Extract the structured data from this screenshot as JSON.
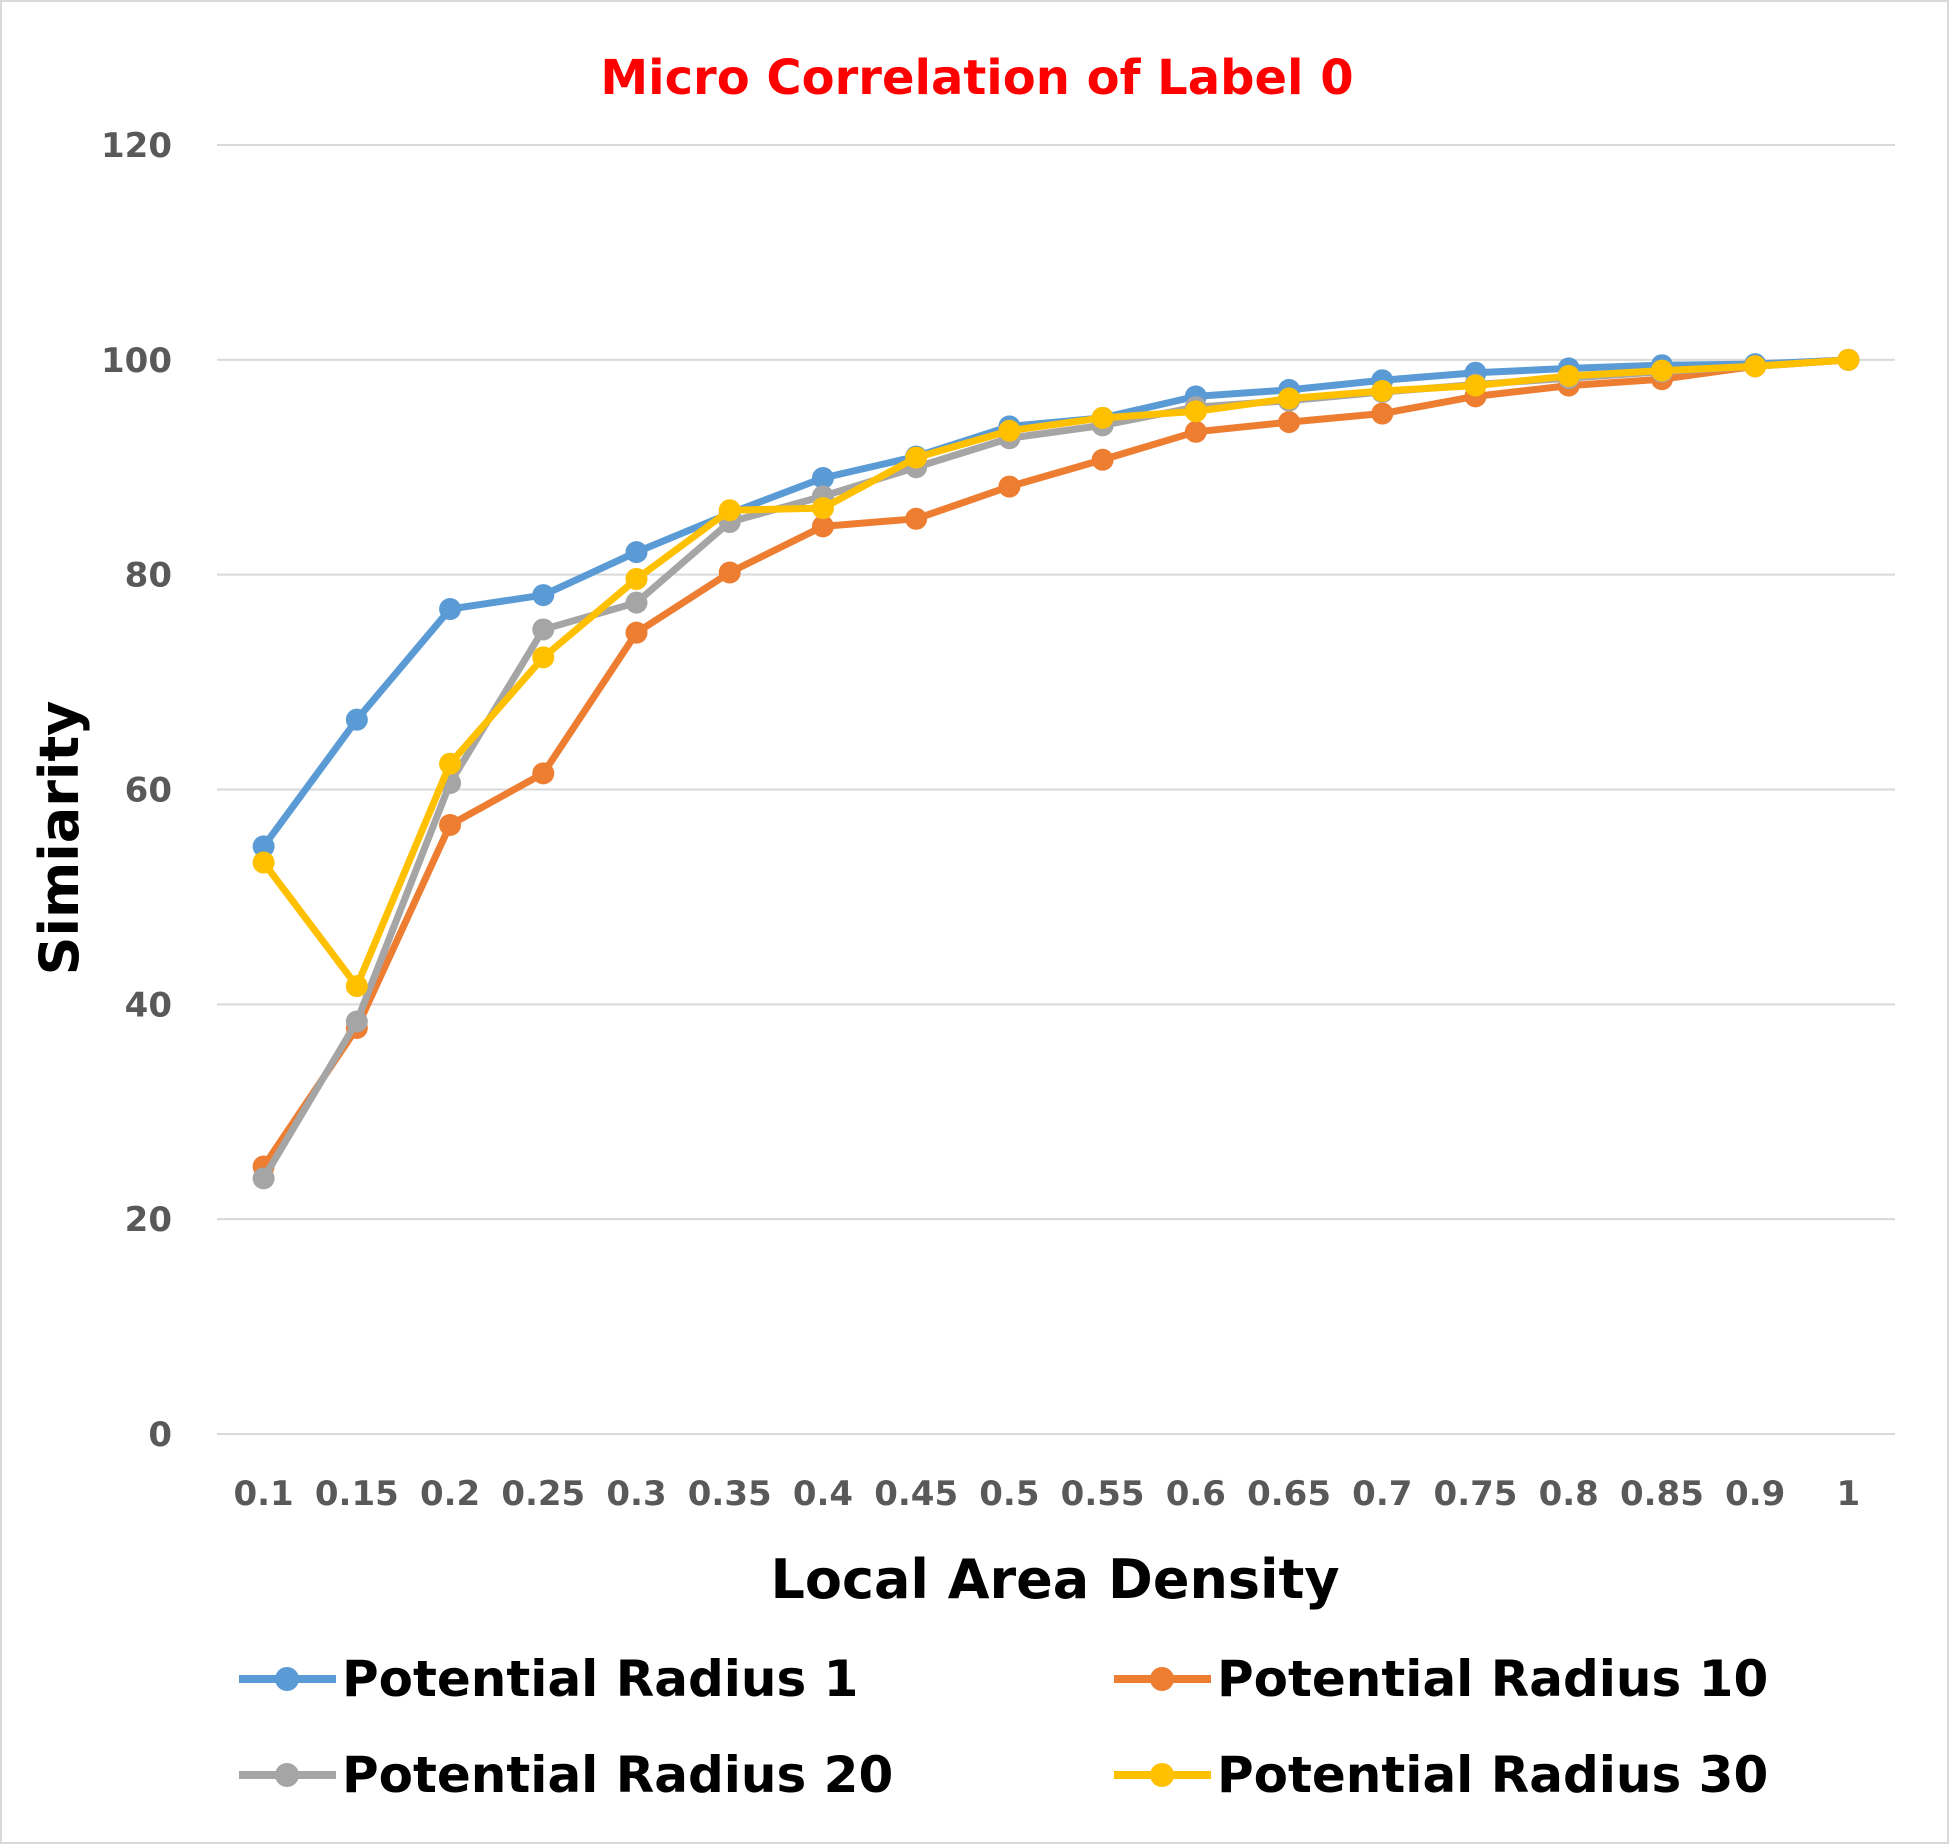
{
  "chart_data": {
    "type": "line",
    "title": "Micro Correlation of Label 0",
    "title_color": "#FF0000",
    "xlabel": "Local Area Density",
    "ylabel": "Simiarity",
    "categories": [
      "0.1",
      "0.15",
      "0.2",
      "0.25",
      "0.3",
      "0.35",
      "0.4",
      "0.45",
      "0.5",
      "0.55",
      "0.6",
      "0.65",
      "0.7",
      "0.75",
      "0.8",
      "0.85",
      "0.9",
      "1"
    ],
    "ylim": [
      0,
      120
    ],
    "yticks": [
      0,
      20,
      40,
      60,
      80,
      100,
      120
    ],
    "grid": "horizontal",
    "legend_position": "bottom",
    "series": [
      {
        "name": "Potential Radius 1",
        "color": "#5B9BD5",
        "values": [
          54.7,
          66.5,
          76.8,
          78.1,
          82.1,
          85.7,
          89.0,
          91.0,
          93.8,
          94.6,
          96.6,
          97.2,
          98.1,
          98.8,
          99.2,
          99.5,
          99.6,
          100
        ]
      },
      {
        "name": "Potential Radius 10",
        "color": "#ED7D31",
        "values": [
          24.9,
          37.8,
          56.7,
          61.5,
          74.6,
          80.2,
          84.5,
          85.2,
          88.2,
          90.7,
          93.3,
          94.2,
          95.0,
          96.6,
          97.6,
          98.2,
          99.4,
          100
        ]
      },
      {
        "name": "Potential Radius 20",
        "color": "#A5A5A5",
        "values": [
          23.8,
          38.4,
          60.6,
          74.9,
          77.4,
          84.9,
          87.3,
          90.0,
          92.7,
          93.9,
          95.6,
          96.2,
          97.0,
          97.7,
          98.3,
          98.9,
          99.4,
          100
        ]
      },
      {
        "name": "Potential Radius 30",
        "color": "#FFC000",
        "values": [
          53.2,
          41.7,
          62.4,
          72.3,
          79.6,
          86.0,
          86.2,
          90.9,
          93.4,
          94.6,
          95.2,
          96.4,
          97.1,
          97.6,
          98.5,
          99.0,
          99.4,
          100
        ]
      }
    ]
  }
}
